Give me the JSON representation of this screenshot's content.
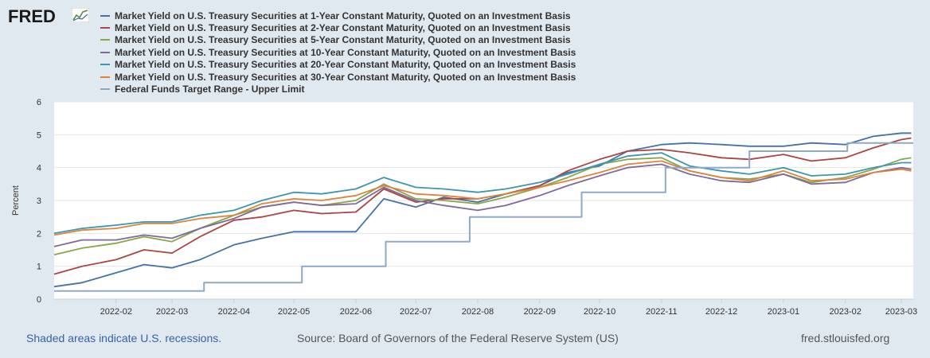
{
  "logo": "FRED",
  "footer": {
    "recessions": "Shaded areas indicate U.S. recessions.",
    "source": "Source: Board of Governors of the Federal Reserve System (US)",
    "site": "fred.stlouisfed.org"
  },
  "chart_data": {
    "type": "line",
    "title": "",
    "xlabel": "",
    "ylabel": "Percent",
    "ylim": [
      0,
      6
    ],
    "yticks": [
      "0",
      "1",
      "2",
      "3",
      "4",
      "5",
      "6"
    ],
    "xlim": [
      "2022-01-01",
      "2023-03-07"
    ],
    "xticks": [
      {
        "date": "2022-02-01",
        "label": "2022-02"
      },
      {
        "date": "2022-03-01",
        "label": "2022-03"
      },
      {
        "date": "2022-04-01",
        "label": "2022-04"
      },
      {
        "date": "2022-05-01",
        "label": "2022-05"
      },
      {
        "date": "2022-06-01",
        "label": "2022-06"
      },
      {
        "date": "2022-07-01",
        "label": "2022-07"
      },
      {
        "date": "2022-08-01",
        "label": "2022-08"
      },
      {
        "date": "2022-09-01",
        "label": "2022-09"
      },
      {
        "date": "2022-10-01",
        "label": "2022-10"
      },
      {
        "date": "2022-11-01",
        "label": "2022-11"
      },
      {
        "date": "2022-12-01",
        "label": "2022-12"
      },
      {
        "date": "2023-01-01",
        "label": "2023-01"
      },
      {
        "date": "2023-02-01",
        "label": "2023-02"
      },
      {
        "date": "2023-03-01",
        "label": "2023-03"
      }
    ],
    "grid": "horizontal",
    "legend": "top",
    "series": [
      {
        "name": "Market Yield on U.S. Treasury Securities at 1-Year Constant Maturity, Quoted on an Investment Basis",
        "color": "#4572a7",
        "x": [
          "2022-01-01",
          "2022-01-15",
          "2022-02-01",
          "2022-02-15",
          "2022-03-01",
          "2022-03-15",
          "2022-04-01",
          "2022-04-15",
          "2022-05-01",
          "2022-05-15",
          "2022-06-01",
          "2022-06-15",
          "2022-07-01",
          "2022-07-15",
          "2022-08-01",
          "2022-08-15",
          "2022-09-01",
          "2022-09-15",
          "2022-10-01",
          "2022-10-15",
          "2022-11-01",
          "2022-11-15",
          "2022-12-01",
          "2022-12-15",
          "2023-01-01",
          "2023-01-15",
          "2023-02-01",
          "2023-02-15",
          "2023-03-01",
          "2023-03-06"
        ],
        "values": [
          0.38,
          0.5,
          0.8,
          1.05,
          0.95,
          1.2,
          1.65,
          1.85,
          2.05,
          2.05,
          2.05,
          3.05,
          2.8,
          3.1,
          2.95,
          3.2,
          3.45,
          3.85,
          4.05,
          4.5,
          4.7,
          4.75,
          4.7,
          4.65,
          4.65,
          4.75,
          4.7,
          4.95,
          5.05,
          5.05
        ]
      },
      {
        "name": "Market Yield on U.S. Treasury Securities at 2-Year Constant Maturity, Quoted on an Investment Basis",
        "color": "#aa4643",
        "x": [
          "2022-01-01",
          "2022-01-15",
          "2022-02-01",
          "2022-02-15",
          "2022-03-01",
          "2022-03-15",
          "2022-04-01",
          "2022-04-15",
          "2022-05-01",
          "2022-05-15",
          "2022-06-01",
          "2022-06-15",
          "2022-07-01",
          "2022-07-15",
          "2022-08-01",
          "2022-08-15",
          "2022-09-01",
          "2022-09-15",
          "2022-10-01",
          "2022-10-15",
          "2022-11-01",
          "2022-11-15",
          "2022-12-01",
          "2022-12-15",
          "2023-01-01",
          "2023-01-15",
          "2023-02-01",
          "2023-02-15",
          "2023-03-01",
          "2023-03-06"
        ],
        "values": [
          0.76,
          1.0,
          1.2,
          1.5,
          1.4,
          1.9,
          2.4,
          2.5,
          2.7,
          2.6,
          2.65,
          3.35,
          2.95,
          3.05,
          3.05,
          3.2,
          3.45,
          3.9,
          4.25,
          4.5,
          4.55,
          4.45,
          4.3,
          4.25,
          4.4,
          4.2,
          4.3,
          4.6,
          4.85,
          4.9
        ]
      },
      {
        "name": "Market Yield on U.S. Treasury Securities at 5-Year Constant Maturity, Quoted on an Investment Basis",
        "color": "#89a54e",
        "x": [
          "2022-01-01",
          "2022-01-15",
          "2022-02-01",
          "2022-02-15",
          "2022-03-01",
          "2022-03-15",
          "2022-04-01",
          "2022-04-15",
          "2022-05-01",
          "2022-05-15",
          "2022-06-01",
          "2022-06-15",
          "2022-07-01",
          "2022-07-15",
          "2022-08-01",
          "2022-08-15",
          "2022-09-01",
          "2022-09-15",
          "2022-10-01",
          "2022-10-15",
          "2022-11-01",
          "2022-11-15",
          "2022-12-01",
          "2022-12-15",
          "2023-01-01",
          "2023-01-15",
          "2023-02-01",
          "2023-02-15",
          "2023-03-01",
          "2023-03-06"
        ],
        "values": [
          1.35,
          1.55,
          1.7,
          1.9,
          1.75,
          2.15,
          2.55,
          2.8,
          2.95,
          2.85,
          3.0,
          3.5,
          3.05,
          3.0,
          2.9,
          3.1,
          3.4,
          3.7,
          4.1,
          4.25,
          4.3,
          3.9,
          3.7,
          3.65,
          3.8,
          3.55,
          3.7,
          3.95,
          4.25,
          4.3
        ]
      },
      {
        "name": "Market Yield on U.S. Treasury Securities at 10-Year Constant Maturity, Quoted on an Investment Basis",
        "color": "#80699b",
        "x": [
          "2022-01-01",
          "2022-01-15",
          "2022-02-01",
          "2022-02-15",
          "2022-03-01",
          "2022-03-15",
          "2022-04-01",
          "2022-04-15",
          "2022-05-01",
          "2022-05-15",
          "2022-06-01",
          "2022-06-15",
          "2022-07-01",
          "2022-07-15",
          "2022-08-01",
          "2022-08-15",
          "2022-09-01",
          "2022-09-15",
          "2022-10-01",
          "2022-10-15",
          "2022-11-01",
          "2022-11-15",
          "2022-12-01",
          "2022-12-15",
          "2023-01-01",
          "2023-01-15",
          "2023-02-01",
          "2023-02-15",
          "2023-03-01",
          "2023-03-06"
        ],
        "values": [
          1.6,
          1.8,
          1.8,
          1.95,
          1.85,
          2.15,
          2.45,
          2.8,
          2.95,
          2.85,
          2.9,
          3.4,
          3.0,
          2.85,
          2.7,
          2.85,
          3.15,
          3.45,
          3.75,
          4.0,
          4.1,
          3.8,
          3.6,
          3.55,
          3.8,
          3.5,
          3.55,
          3.85,
          4.0,
          3.95
        ]
      },
      {
        "name": "Market Yield on U.S. Treasury Securities at 20-Year Constant Maturity, Quoted on an Investment Basis",
        "color": "#3d96ae",
        "x": [
          "2022-01-01",
          "2022-01-15",
          "2022-02-01",
          "2022-02-15",
          "2022-03-01",
          "2022-03-15",
          "2022-04-01",
          "2022-04-15",
          "2022-05-01",
          "2022-05-15",
          "2022-06-01",
          "2022-06-15",
          "2022-07-01",
          "2022-07-15",
          "2022-08-01",
          "2022-08-15",
          "2022-09-01",
          "2022-09-15",
          "2022-10-01",
          "2022-10-15",
          "2022-11-01",
          "2022-11-15",
          "2022-12-01",
          "2022-12-15",
          "2023-01-01",
          "2023-01-15",
          "2023-02-01",
          "2023-02-15",
          "2023-03-01",
          "2023-03-06"
        ],
        "values": [
          2.0,
          2.15,
          2.25,
          2.35,
          2.35,
          2.55,
          2.7,
          3.0,
          3.25,
          3.2,
          3.35,
          3.7,
          3.4,
          3.35,
          3.25,
          3.35,
          3.55,
          3.8,
          4.1,
          4.35,
          4.45,
          4.05,
          3.9,
          3.8,
          4.0,
          3.75,
          3.8,
          4.0,
          4.15,
          4.15
        ]
      },
      {
        "name": "Market Yield on U.S. Treasury Securities at 30-Year Constant Maturity, Quoted on an Investment Basis",
        "color": "#db843d",
        "x": [
          "2022-01-01",
          "2022-01-15",
          "2022-02-01",
          "2022-02-15",
          "2022-03-01",
          "2022-03-15",
          "2022-04-01",
          "2022-04-15",
          "2022-05-01",
          "2022-05-15",
          "2022-06-01",
          "2022-06-15",
          "2022-07-01",
          "2022-07-15",
          "2022-08-01",
          "2022-08-15",
          "2022-09-01",
          "2022-09-15",
          "2022-10-01",
          "2022-10-15",
          "2022-11-01",
          "2022-11-15",
          "2022-12-01",
          "2022-12-15",
          "2023-01-01",
          "2023-01-15",
          "2023-02-01",
          "2023-02-15",
          "2023-03-01",
          "2023-03-06"
        ],
        "values": [
          1.95,
          2.1,
          2.15,
          2.3,
          2.3,
          2.45,
          2.55,
          2.9,
          3.05,
          3.0,
          3.15,
          3.45,
          3.2,
          3.15,
          3.05,
          3.2,
          3.4,
          3.6,
          3.85,
          4.1,
          4.2,
          3.9,
          3.7,
          3.6,
          3.9,
          3.6,
          3.65,
          3.85,
          3.95,
          3.9
        ]
      },
      {
        "name": "Federal Funds Target Range - Upper Limit",
        "color": "#8fa8c8",
        "step": true,
        "x": [
          "2022-01-01",
          "2022-03-17",
          "2022-05-05",
          "2022-06-16",
          "2022-07-28",
          "2022-09-22",
          "2022-11-03",
          "2022-12-15",
          "2023-02-02",
          "2023-03-07"
        ],
        "values": [
          0.25,
          0.5,
          1.0,
          1.75,
          2.5,
          3.25,
          4.0,
          4.5,
          4.75,
          4.75
        ]
      }
    ]
  }
}
